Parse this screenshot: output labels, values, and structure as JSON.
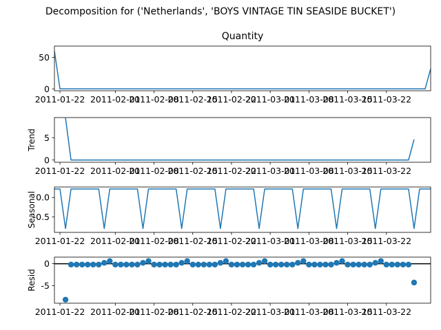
{
  "suptitle": "Decomposition for ('Netherlands', 'BOYS VINTAGE TIN SEASIDE BUCKET')",
  "x_tick_labels": [
    "2011-01-22",
    "2011-02-01",
    "2011-02-08",
    "2011-02-15",
    "2011-02-22",
    "2011-03-01",
    "2011-03-08",
    "2011-03-15",
    "2011-03-22"
  ],
  "colors": {
    "line": "#1f77b4",
    "marker": "#1f77b4",
    "zero_line": "#000000",
    "axes": "#000000"
  },
  "chart_data": [
    {
      "type": "line",
      "title": "Quantity",
      "ylabel": "",
      "xlim": [
        "2011-01-21",
        "2011-03-30"
      ],
      "ylim": [
        -3,
        68
      ],
      "yticks": [
        0,
        50
      ],
      "x_ticks": [
        "2011-01-22",
        "2011-02-01",
        "2011-02-08",
        "2011-02-15",
        "2011-02-22",
        "2011-03-01",
        "2011-03-08",
        "2011-03-15",
        "2011-03-22"
      ],
      "series": [
        {
          "x": [
            "2011-01-21",
            "2011-01-22",
            "2011-03-29",
            "2011-03-30"
          ],
          "y": [
            60,
            0,
            0,
            32
          ]
        }
      ]
    },
    {
      "type": "line",
      "title": "",
      "ylabel": "Trend",
      "xlim": [
        "2011-01-21",
        "2011-03-30"
      ],
      "ylim": [
        -0.5,
        9.5
      ],
      "yticks": [
        0,
        5
      ],
      "x_ticks": [
        "2011-01-22",
        "2011-02-01",
        "2011-02-08",
        "2011-02-15",
        "2011-02-22",
        "2011-03-01",
        "2011-03-08",
        "2011-03-15",
        "2011-03-22"
      ],
      "series": [
        {
          "x": [
            "2011-01-23",
            "2011-01-24",
            "2011-03-26",
            "2011-03-27"
          ],
          "y": [
            9.4,
            0,
            0,
            4.6
          ]
        }
      ]
    },
    {
      "type": "line",
      "title": "",
      "ylabel": "Seasonal",
      "xlim": [
        "2011-01-21",
        "2011-03-30"
      ],
      "ylim": [
        -0.9,
        0.27
      ],
      "yticks": [
        0.0,
        -0.5
      ],
      "x_ticks": [
        "2011-01-22",
        "2011-02-01",
        "2011-02-08",
        "2011-02-15",
        "2011-02-22",
        "2011-03-01",
        "2011-03-08",
        "2011-03-15",
        "2011-03-22"
      ],
      "series": [
        {
          "x": [
            "2011-01-21"
          ],
          "y": [
            0.22
          ],
          "pattern": "weekly",
          "high": 0.22,
          "low": -0.8,
          "low_weekday": "Sunday"
        }
      ]
    },
    {
      "type": "scatter",
      "title": "",
      "ylabel": "Resid",
      "xlim": [
        "2011-01-21",
        "2011-03-30"
      ],
      "ylim": [
        -9,
        1.5
      ],
      "yticks": [
        0,
        -5
      ],
      "zero_line": true,
      "x_ticks": [
        "2011-01-22",
        "2011-02-01",
        "2011-02-08",
        "2011-02-15",
        "2011-02-22",
        "2011-03-01",
        "2011-03-08",
        "2011-03-15",
        "2011-03-22"
      ],
      "series": [
        {
          "x": [
            "2011-01-23",
            "2011-01-24",
            "2011-01-25",
            "2011-01-26",
            "2011-01-27",
            "2011-01-28",
            "2011-01-29",
            "2011-01-30",
            "2011-01-31",
            "2011-02-01",
            "2011-02-02",
            "2011-02-03",
            "2011-02-04",
            "2011-02-05",
            "2011-02-06",
            "2011-02-07",
            "2011-02-08",
            "2011-02-09",
            "2011-02-10",
            "2011-02-11",
            "2011-02-12",
            "2011-02-13",
            "2011-02-14",
            "2011-02-15",
            "2011-02-16",
            "2011-02-17",
            "2011-02-18",
            "2011-02-19",
            "2011-02-20",
            "2011-02-21",
            "2011-02-22",
            "2011-02-23",
            "2011-02-24",
            "2011-02-25",
            "2011-02-26",
            "2011-02-27",
            "2011-02-28",
            "2011-03-01",
            "2011-03-02",
            "2011-03-03",
            "2011-03-04",
            "2011-03-05",
            "2011-03-06",
            "2011-03-07",
            "2011-03-08",
            "2011-03-09",
            "2011-03-10",
            "2011-03-11",
            "2011-03-12",
            "2011-03-13",
            "2011-03-14",
            "2011-03-15",
            "2011-03-16",
            "2011-03-17",
            "2011-03-18",
            "2011-03-19",
            "2011-03-20",
            "2011-03-21",
            "2011-03-22",
            "2011-03-23",
            "2011-03-24",
            "2011-03-25",
            "2011-03-26",
            "2011-03-27"
          ],
          "y": [
            -8.2,
            -0.2,
            -0.2,
            -0.2,
            -0.2,
            -0.2,
            -0.2,
            0.2,
            0.6,
            -0.2,
            -0.2,
            -0.2,
            -0.2,
            -0.2,
            0.2,
            0.6,
            -0.2,
            -0.2,
            -0.2,
            -0.2,
            -0.2,
            0.2,
            0.6,
            -0.2,
            -0.2,
            -0.2,
            -0.2,
            -0.2,
            0.2,
            0.6,
            -0.2,
            -0.2,
            -0.2,
            -0.2,
            -0.2,
            0.2,
            0.6,
            -0.2,
            -0.2,
            -0.2,
            -0.2,
            -0.2,
            0.2,
            0.6,
            -0.2,
            -0.2,
            -0.2,
            -0.2,
            -0.2,
            0.2,
            0.6,
            -0.2,
            -0.2,
            -0.2,
            -0.2,
            -0.2,
            0.2,
            0.6,
            -0.2,
            -0.2,
            -0.2,
            -0.2,
            -0.2,
            -4.3
          ]
        }
      ]
    }
  ]
}
